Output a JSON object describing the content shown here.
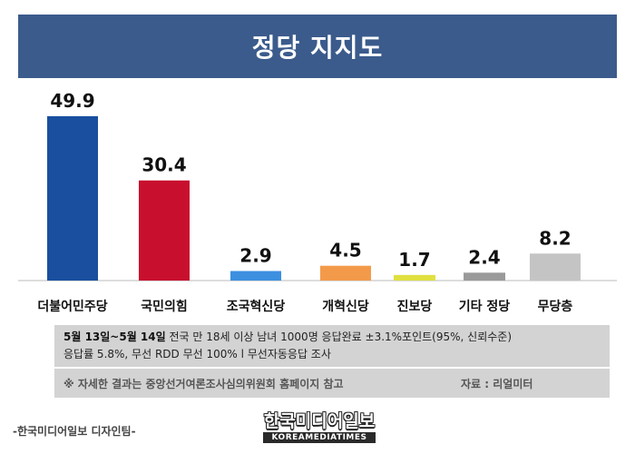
{
  "title": "정당 지지도",
  "chart_data": {
    "type": "bar",
    "categories": [
      "더불어민주당",
      "국민의힘",
      "조국혁신당",
      "개혁신당",
      "진보당",
      "기타 정당",
      "무당층"
    ],
    "values": [
      49.9,
      30.4,
      2.9,
      4.5,
      1.7,
      2.4,
      8.2
    ],
    "value_labels": [
      "49.9",
      "30.4",
      "2.9",
      "4.5",
      "1.7",
      "2.4",
      "8.2"
    ],
    "colors": [
      "#1a4fa0",
      "#c8102e",
      "#3d8fe0",
      "#f39a4a",
      "#e0e040",
      "#9a9a9a",
      "#c4c4c4"
    ],
    "ylim": [
      0,
      50
    ]
  },
  "survey": {
    "date": "5월 13일~5월 14일",
    "line1": " 전국 만 18세 이상 남녀 1000명 응답완료 ±3.1%포인트(95%, 신뢰수준)",
    "line2": "응답률 5.8%, 무선 RDD 무선 100% l 무선자동응답 조사"
  },
  "note": "※ 자세한 결과는 중앙선거여론조사심의위원회 홈페이지 참고",
  "source": "자료 : 리얼미터",
  "credit": "-한국미디어일보 디자인팀-",
  "logo": {
    "main": "한국미디어일보",
    "sub": "KOREAMEDIATIMES"
  }
}
